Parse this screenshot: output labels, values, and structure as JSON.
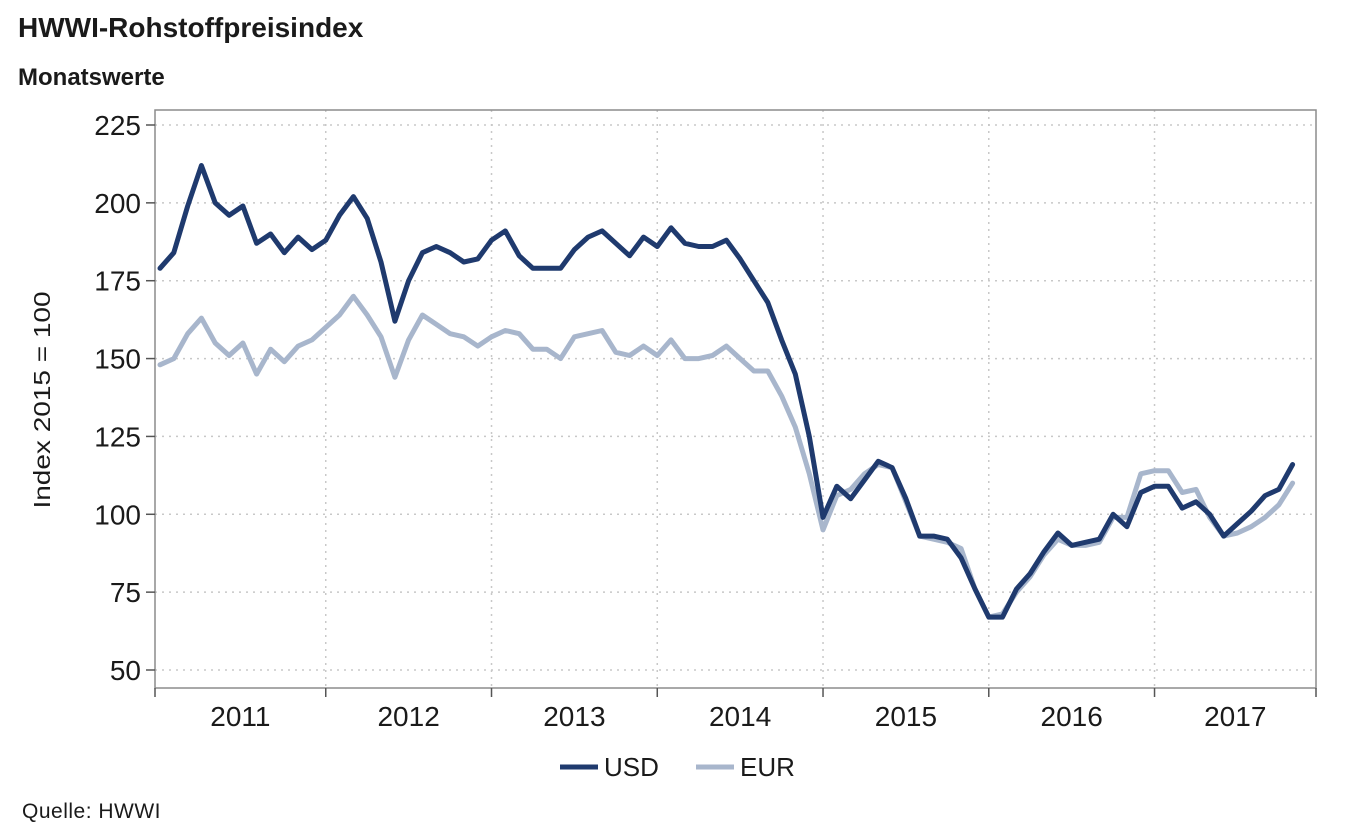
{
  "title": "HWWI-Rohstoffpreisindex",
  "subtitle": "Monatswerte",
  "source": "Quelle: HWWI",
  "chart_data": {
    "type": "line",
    "ylabel": "Index 2015 = 100",
    "xlabel": "",
    "ylim": [
      50,
      230
    ],
    "yticks": [
      50,
      75,
      100,
      125,
      150,
      175,
      200,
      225
    ],
    "xlim": [
      2011,
      2017.95
    ],
    "year_labels": [
      "2011",
      "2012",
      "2013",
      "2014",
      "2015",
      "2016",
      "2017"
    ],
    "grid": true,
    "legend_position": "bottom-center",
    "series": [
      {
        "name": "USD",
        "color": "#1f3a6e",
        "points": [
          [
            2011.0,
            179
          ],
          [
            2011.083,
            184
          ],
          [
            2011.167,
            199
          ],
          [
            2011.25,
            212
          ],
          [
            2011.333,
            200
          ],
          [
            2011.417,
            196
          ],
          [
            2011.5,
            199
          ],
          [
            2011.583,
            187
          ],
          [
            2011.667,
            190
          ],
          [
            2011.75,
            184
          ],
          [
            2011.833,
            189
          ],
          [
            2011.917,
            185
          ],
          [
            2012.0,
            188
          ],
          [
            2012.083,
            196
          ],
          [
            2012.167,
            202
          ],
          [
            2012.25,
            195
          ],
          [
            2012.333,
            181
          ],
          [
            2012.417,
            162
          ],
          [
            2012.5,
            175
          ],
          [
            2012.583,
            184
          ],
          [
            2012.667,
            186
          ],
          [
            2012.75,
            184
          ],
          [
            2012.833,
            181
          ],
          [
            2012.917,
            182
          ],
          [
            2013.0,
            188
          ],
          [
            2013.083,
            191
          ],
          [
            2013.167,
            183
          ],
          [
            2013.25,
            179
          ],
          [
            2013.333,
            179
          ],
          [
            2013.417,
            179
          ],
          [
            2013.5,
            185
          ],
          [
            2013.583,
            189
          ],
          [
            2013.667,
            191
          ],
          [
            2013.75,
            187
          ],
          [
            2013.833,
            183
          ],
          [
            2013.917,
            189
          ],
          [
            2014.0,
            186
          ],
          [
            2014.083,
            192
          ],
          [
            2014.167,
            187
          ],
          [
            2014.25,
            186
          ],
          [
            2014.333,
            186
          ],
          [
            2014.417,
            188
          ],
          [
            2014.5,
            182
          ],
          [
            2014.583,
            175
          ],
          [
            2014.667,
            168
          ],
          [
            2014.75,
            156
          ],
          [
            2014.833,
            145
          ],
          [
            2014.917,
            125
          ],
          [
            2015.0,
            99
          ],
          [
            2015.083,
            109
          ],
          [
            2015.167,
            105
          ],
          [
            2015.25,
            111
          ],
          [
            2015.333,
            117
          ],
          [
            2015.417,
            115
          ],
          [
            2015.5,
            105
          ],
          [
            2015.583,
            93
          ],
          [
            2015.667,
            93
          ],
          [
            2015.75,
            92
          ],
          [
            2015.833,
            86
          ],
          [
            2015.917,
            76
          ],
          [
            2016.0,
            67
          ],
          [
            2016.083,
            67
          ],
          [
            2016.167,
            76
          ],
          [
            2016.25,
            81
          ],
          [
            2016.333,
            88
          ],
          [
            2016.417,
            94
          ],
          [
            2016.5,
            90
          ],
          [
            2016.583,
            91
          ],
          [
            2016.667,
            92
          ],
          [
            2016.75,
            100
          ],
          [
            2016.833,
            96
          ],
          [
            2016.917,
            107
          ],
          [
            2017.0,
            109
          ],
          [
            2017.083,
            109
          ],
          [
            2017.167,
            102
          ],
          [
            2017.25,
            104
          ],
          [
            2017.333,
            100
          ],
          [
            2017.417,
            93
          ],
          [
            2017.5,
            97
          ],
          [
            2017.583,
            101
          ],
          [
            2017.667,
            106
          ],
          [
            2017.75,
            108
          ],
          [
            2017.833,
            116
          ]
        ]
      },
      {
        "name": "EUR",
        "color": "#a8b6cc",
        "points": [
          [
            2011.0,
            148
          ],
          [
            2011.083,
            150
          ],
          [
            2011.167,
            158
          ],
          [
            2011.25,
            163
          ],
          [
            2011.333,
            155
          ],
          [
            2011.417,
            151
          ],
          [
            2011.5,
            155
          ],
          [
            2011.583,
            145
          ],
          [
            2011.667,
            153
          ],
          [
            2011.75,
            149
          ],
          [
            2011.833,
            154
          ],
          [
            2011.917,
            156
          ],
          [
            2012.0,
            160
          ],
          [
            2012.083,
            164
          ],
          [
            2012.167,
            170
          ],
          [
            2012.25,
            164
          ],
          [
            2012.333,
            157
          ],
          [
            2012.417,
            144
          ],
          [
            2012.5,
            156
          ],
          [
            2012.583,
            164
          ],
          [
            2012.667,
            161
          ],
          [
            2012.75,
            158
          ],
          [
            2012.833,
            157
          ],
          [
            2012.917,
            154
          ],
          [
            2013.0,
            157
          ],
          [
            2013.083,
            159
          ],
          [
            2013.167,
            158
          ],
          [
            2013.25,
            153
          ],
          [
            2013.333,
            153
          ],
          [
            2013.417,
            150
          ],
          [
            2013.5,
            157
          ],
          [
            2013.583,
            158
          ],
          [
            2013.667,
            159
          ],
          [
            2013.75,
            152
          ],
          [
            2013.833,
            151
          ],
          [
            2013.917,
            154
          ],
          [
            2014.0,
            151
          ],
          [
            2014.083,
            156
          ],
          [
            2014.167,
            150
          ],
          [
            2014.25,
            150
          ],
          [
            2014.333,
            151
          ],
          [
            2014.417,
            154
          ],
          [
            2014.5,
            150
          ],
          [
            2014.583,
            146
          ],
          [
            2014.667,
            146
          ],
          [
            2014.75,
            138
          ],
          [
            2014.833,
            128
          ],
          [
            2014.917,
            113
          ],
          [
            2015.0,
            95
          ],
          [
            2015.083,
            106
          ],
          [
            2015.167,
            108
          ],
          [
            2015.25,
            113
          ],
          [
            2015.333,
            116
          ],
          [
            2015.417,
            115
          ],
          [
            2015.5,
            104
          ],
          [
            2015.583,
            93
          ],
          [
            2015.667,
            92
          ],
          [
            2015.75,
            91
          ],
          [
            2015.833,
            89
          ],
          [
            2015.917,
            76
          ],
          [
            2016.0,
            67
          ],
          [
            2016.083,
            68
          ],
          [
            2016.167,
            75
          ],
          [
            2016.25,
            80
          ],
          [
            2016.333,
            87
          ],
          [
            2016.417,
            92
          ],
          [
            2016.5,
            90
          ],
          [
            2016.583,
            90
          ],
          [
            2016.667,
            91
          ],
          [
            2016.75,
            99
          ],
          [
            2016.833,
            99
          ],
          [
            2016.917,
            113
          ],
          [
            2017.0,
            114
          ],
          [
            2017.083,
            114
          ],
          [
            2017.167,
            107
          ],
          [
            2017.25,
            108
          ],
          [
            2017.333,
            99
          ],
          [
            2017.417,
            93
          ],
          [
            2017.5,
            94
          ],
          [
            2017.583,
            96
          ],
          [
            2017.667,
            99
          ],
          [
            2017.75,
            103
          ],
          [
            2017.833,
            110
          ]
        ]
      }
    ]
  }
}
